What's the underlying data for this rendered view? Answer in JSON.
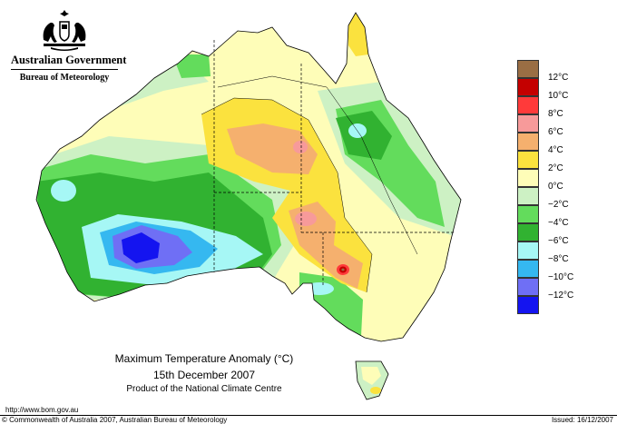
{
  "header": {
    "government": "Australian Government",
    "bureau": "Bureau of Meteorology"
  },
  "caption": {
    "title": "Maximum Temperature Anomaly (°C)",
    "date": "15th December 2007",
    "product": "Product of the National Climate Centre"
  },
  "legend": {
    "items": [
      {
        "label": "",
        "color": "#9a6e44"
      },
      {
        "label": "12°C",
        "color": "#c40000"
      },
      {
        "label": "10°C",
        "color": "#ff3a3a"
      },
      {
        "label": "8°C",
        "color": "#f79a9a"
      },
      {
        "label": "6°C",
        "color": "#f5b06e"
      },
      {
        "label": "4°C",
        "color": "#fbe23e"
      },
      {
        "label": "2°C",
        "color": "#fefdb8"
      },
      {
        "label": "0°C",
        "color": "#cdf1c4"
      },
      {
        "label": "−2°C",
        "color": "#63dc5c"
      },
      {
        "label": "−4°C",
        "color": "#31b231"
      },
      {
        "label": "−6°C",
        "color": "#a6f7f5"
      },
      {
        "label": "−8°C",
        "color": "#35b8f0"
      },
      {
        "label": "−10°C",
        "color": "#6f6ff5"
      },
      {
        "label": "−12°C",
        "color": "#1414f0"
      }
    ]
  },
  "footer": {
    "url": "http://www.bom.gov.au",
    "copyright": "© Commonwealth of Australia 2007, Australian Bureau of Meteorology",
    "issued": "Issued: 16/12/2007"
  }
}
